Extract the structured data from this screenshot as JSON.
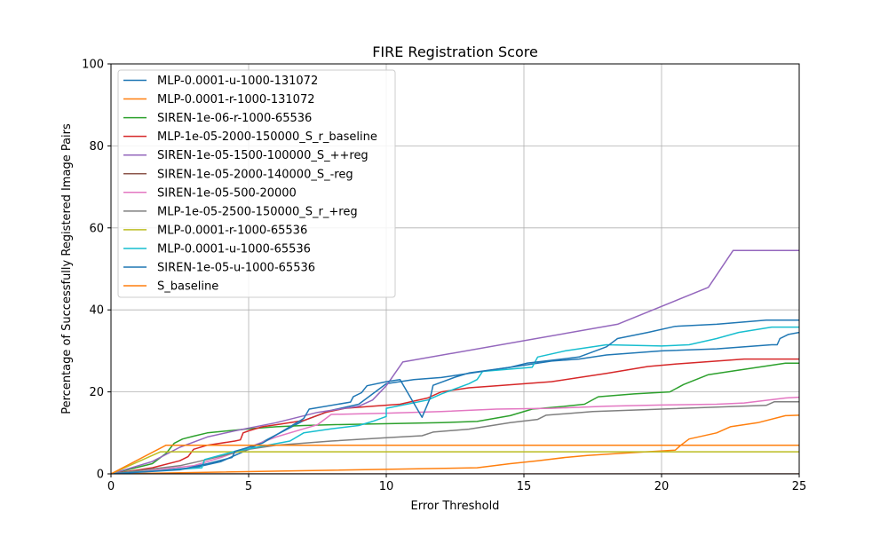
{
  "chart_data": {
    "type": "line",
    "title": "FIRE Registration Score",
    "xlabel": "Error Threshold",
    "ylabel": "Percentage of Successfully Registered Image Pairs",
    "xlim": [
      0,
      25
    ],
    "ylim": [
      0,
      100
    ],
    "xticks": [
      0,
      5,
      10,
      15,
      20,
      25
    ],
    "yticks": [
      0,
      20,
      40,
      60,
      80,
      100
    ],
    "grid": true,
    "legend_position": "upper-left",
    "series": [
      {
        "name": "MLP-0.0001-u-1000-131072",
        "color": "#1f77b4",
        "points": [
          [
            0,
            0
          ],
          [
            3,
            1.5
          ],
          [
            4,
            3
          ],
          [
            5,
            6
          ],
          [
            6,
            9.5
          ],
          [
            7,
            13
          ],
          [
            8,
            15.5
          ],
          [
            9,
            17
          ],
          [
            10,
            22
          ],
          [
            11,
            23
          ],
          [
            12,
            23.5
          ],
          [
            13,
            24.5
          ],
          [
            15,
            26.5
          ],
          [
            16,
            27.5
          ],
          [
            17,
            28
          ],
          [
            18,
            29
          ],
          [
            20,
            30
          ],
          [
            22,
            30.5
          ],
          [
            24,
            31.5
          ],
          [
            24.2,
            31.5
          ],
          [
            24.3,
            33
          ],
          [
            24.6,
            34
          ],
          [
            25,
            34.5
          ]
        ]
      },
      {
        "name": "MLP-0.0001-r-1000-131072",
        "color": "#ff7f0e",
        "points": [
          [
            0,
            0
          ],
          [
            13.3,
            1.5
          ],
          [
            14.5,
            2.5
          ],
          [
            15.5,
            3.2
          ],
          [
            16.5,
            4
          ],
          [
            17.3,
            4.5
          ],
          [
            18.5,
            5
          ],
          [
            20.5,
            5.8
          ],
          [
            20.7,
            7
          ],
          [
            21,
            8.5
          ],
          [
            22,
            10
          ],
          [
            22.5,
            11.5
          ],
          [
            23.5,
            12.5
          ],
          [
            24.5,
            14.2
          ],
          [
            25,
            14.3
          ]
        ]
      },
      {
        "name": "SIREN-1e-06-r-1000-65536",
        "color": "#2ca02c",
        "points": [
          [
            0,
            0
          ],
          [
            1.5,
            2.5
          ],
          [
            2,
            5
          ],
          [
            2.3,
            7.5
          ],
          [
            2.6,
            8.5
          ],
          [
            3,
            9.2
          ],
          [
            3.5,
            10
          ],
          [
            5,
            11
          ],
          [
            6,
            11.5
          ],
          [
            7,
            11.8
          ],
          [
            8,
            12
          ],
          [
            12,
            12.5
          ],
          [
            13.3,
            12.8
          ],
          [
            14.5,
            14.2
          ],
          [
            15.3,
            15.8
          ],
          [
            16.5,
            16.5
          ],
          [
            17.2,
            17
          ],
          [
            17.7,
            18.8
          ],
          [
            19,
            19.5
          ],
          [
            20.3,
            20
          ],
          [
            20.8,
            21.8
          ],
          [
            21.7,
            24.2
          ],
          [
            22.5,
            25
          ],
          [
            24.5,
            27
          ],
          [
            25,
            27
          ]
        ]
      },
      {
        "name": "MLP-1e-05-2000-150000_S_r_baseline",
        "color": "#d62728",
        "points": [
          [
            0,
            0
          ],
          [
            1.5,
            1.5
          ],
          [
            2.5,
            3.2
          ],
          [
            2.8,
            4.2
          ],
          [
            3,
            6
          ],
          [
            3.5,
            7
          ],
          [
            4.5,
            8
          ],
          [
            4.7,
            8.3
          ],
          [
            4.8,
            10
          ],
          [
            5,
            10.5
          ],
          [
            5.5,
            11.5
          ],
          [
            6,
            12
          ],
          [
            7,
            13
          ],
          [
            7.8,
            15
          ],
          [
            8.5,
            16
          ],
          [
            9.5,
            16.5
          ],
          [
            10.5,
            17
          ],
          [
            11.5,
            18.5
          ],
          [
            12,
            20
          ],
          [
            13,
            21
          ],
          [
            14,
            21.5
          ],
          [
            16,
            22.5
          ],
          [
            18,
            24.5
          ],
          [
            19.5,
            26.2
          ],
          [
            20.5,
            26.8
          ],
          [
            22,
            27.5
          ],
          [
            23,
            28
          ],
          [
            25,
            28
          ]
        ]
      },
      {
        "name": "SIREN-1e-05-1500-100000_S_++reg",
        "color": "#9467bd",
        "points": [
          [
            0,
            0
          ],
          [
            1.5,
            3
          ],
          [
            2.5,
            6.5
          ],
          [
            3.5,
            9
          ],
          [
            4.5,
            10.5
          ],
          [
            6,
            12.5
          ],
          [
            7.5,
            15
          ],
          [
            9,
            16.5
          ],
          [
            9.5,
            18
          ],
          [
            10,
            21.5
          ],
          [
            10.6,
            27.3
          ],
          [
            18.4,
            36.5
          ],
          [
            21.7,
            45.5
          ],
          [
            22.6,
            54.5
          ],
          [
            25,
            54.5
          ]
        ]
      },
      {
        "name": "SIREN-1e-05-2000-140000_S_-reg",
        "color": "#8c564b",
        "points": [
          [
            0,
            0
          ],
          [
            25,
            0
          ]
        ]
      },
      {
        "name": "SIREN-1e-05-500-20000",
        "color": "#e377c2",
        "points": [
          [
            0,
            0
          ],
          [
            1,
            0.5
          ],
          [
            3,
            2
          ],
          [
            4,
            4
          ],
          [
            5,
            6.5
          ],
          [
            6,
            9
          ],
          [
            7,
            11
          ],
          [
            7.5,
            12
          ],
          [
            8,
            14.5
          ],
          [
            10,
            14.8
          ],
          [
            12,
            15.2
          ],
          [
            14,
            15.8
          ],
          [
            16,
            16
          ],
          [
            18,
            16.5
          ],
          [
            20,
            16.8
          ],
          [
            22,
            17
          ],
          [
            23,
            17.3
          ],
          [
            24.5,
            18.5
          ],
          [
            25,
            18.7
          ]
        ]
      },
      {
        "name": "MLP-1e-05-2500-150000_S_r_+reg",
        "color": "#7f7f7f",
        "points": [
          [
            0,
            0
          ],
          [
            2.5,
            2
          ],
          [
            3.5,
            3.5
          ],
          [
            5,
            6
          ],
          [
            6,
            7
          ],
          [
            8,
            8
          ],
          [
            10,
            8.8
          ],
          [
            11.3,
            9.3
          ],
          [
            11.7,
            10.2
          ],
          [
            13,
            10.9
          ],
          [
            14.5,
            12.5
          ],
          [
            15.5,
            13.3
          ],
          [
            15.8,
            14.3
          ],
          [
            17.5,
            15.2
          ],
          [
            20,
            15.8
          ],
          [
            22,
            16.3
          ],
          [
            23.8,
            16.7
          ],
          [
            24.1,
            17.6
          ],
          [
            25,
            17.6
          ]
        ]
      },
      {
        "name": "MLP-0.0001-r-1000-65536",
        "color": "#bcbd22",
        "points": [
          [
            0,
            0
          ],
          [
            1.8,
            5.4
          ],
          [
            25,
            5.4
          ]
        ]
      },
      {
        "name": "MLP-0.0001-u-1000-65536",
        "color": "#17becf",
        "points": [
          [
            0,
            0
          ],
          [
            3.3,
            1.5
          ],
          [
            3.4,
            3.5
          ],
          [
            4.5,
            5.5
          ],
          [
            6.5,
            8
          ],
          [
            7,
            10
          ],
          [
            8,
            11
          ],
          [
            9,
            11.8
          ],
          [
            9.5,
            12.8
          ],
          [
            10,
            14
          ],
          [
            10,
            16
          ],
          [
            11.5,
            18
          ],
          [
            12,
            19.5
          ],
          [
            13,
            22
          ],
          [
            13.3,
            23
          ],
          [
            13.5,
            25
          ],
          [
            15.3,
            26
          ],
          [
            15.5,
            28.5
          ],
          [
            16.5,
            30
          ],
          [
            18,
            31.5
          ],
          [
            20,
            31.2
          ],
          [
            21,
            31.5
          ],
          [
            22,
            33
          ],
          [
            22.8,
            34.5
          ],
          [
            24,
            35.8
          ],
          [
            25,
            35.8
          ]
        ]
      },
      {
        "name": "SIREN-1e-05-u-1000-65536",
        "color": "#1f77b4",
        "points": [
          [
            0,
            0
          ],
          [
            2.5,
            1
          ],
          [
            3.5,
            2.5
          ],
          [
            4.4,
            4
          ],
          [
            4.5,
            5.5
          ],
          [
            5.5,
            7.5
          ],
          [
            6,
            9.5
          ],
          [
            6.5,
            11.5
          ],
          [
            7,
            13.5
          ],
          [
            7.2,
            15.8
          ],
          [
            8.7,
            17.5
          ],
          [
            8.8,
            18.8
          ],
          [
            9.1,
            19.8
          ],
          [
            9.3,
            21.5
          ],
          [
            10,
            22.5
          ],
          [
            10.5,
            23
          ],
          [
            11.3,
            13.8
          ],
          [
            11.6,
            18.6
          ],
          [
            11.7,
            21.6
          ],
          [
            12.5,
            23.6
          ],
          [
            13,
            24.6
          ],
          [
            14.5,
            26
          ],
          [
            15.1,
            27
          ],
          [
            17,
            28.5
          ],
          [
            18,
            31
          ],
          [
            18.4,
            33
          ],
          [
            19.5,
            34.5
          ],
          [
            20.5,
            36
          ],
          [
            22,
            36.5
          ],
          [
            23.8,
            37.5
          ],
          [
            25,
            37.5
          ]
        ]
      },
      {
        "name": "S_baseline",
        "color": "#ff7f0e",
        "points": [
          [
            0,
            0
          ],
          [
            2,
            7
          ],
          [
            25,
            7
          ]
        ]
      }
    ]
  }
}
